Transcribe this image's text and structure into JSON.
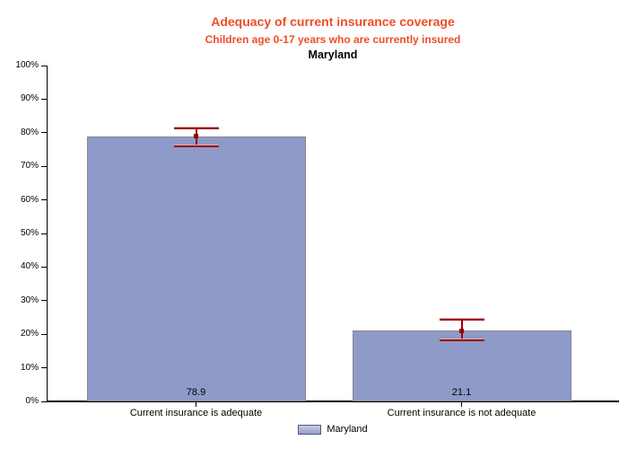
{
  "title": "Adequacy of current insurance coverage",
  "subtitle": "Children age 0-17 years who are currently insured",
  "region": "Maryland",
  "colors": {
    "title_accent": "#EE4D26",
    "bar_fill": "#8E9AC8",
    "bar_border": "#87878F",
    "error_bar": "#990000",
    "axis": "#000000",
    "background": "#ffffff"
  },
  "chart_data": {
    "type": "bar",
    "title": "Adequacy of current insurance coverage",
    "subtitle": "Children age 0-17 years who are currently insured",
    "region_line": "Maryland",
    "categories": [
      "Current insurance is adequate",
      "Current insurance is not adequate"
    ],
    "series": [
      {
        "name": "Maryland",
        "values": [
          78.9,
          21.1
        ],
        "color": "#8E9AC8"
      }
    ],
    "value_labels": [
      "78.9",
      "21.1"
    ],
    "error_bars": [
      {
        "low": 76.2,
        "high": 81.5
      },
      {
        "low": 18.5,
        "high": 24.5
      }
    ],
    "xlabel": "",
    "ylabel": "",
    "ylim": [
      0,
      100
    ],
    "ytick_labels": [
      "0%",
      "10%",
      "20%",
      "30%",
      "40%",
      "50%",
      "60%",
      "70%",
      "80%",
      "90%",
      "100%"
    ],
    "grid": false,
    "legend": {
      "position": "bottom",
      "entries": [
        "Maryland"
      ]
    }
  },
  "legend": {
    "label": "Maryland"
  }
}
